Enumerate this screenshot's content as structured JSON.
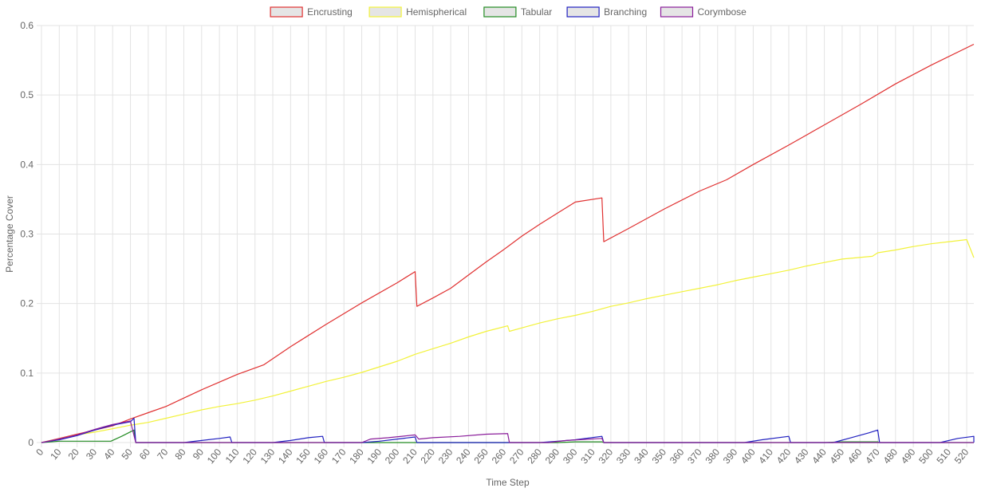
{
  "chart_data": {
    "type": "line",
    "title": "",
    "xlabel": "Time Step",
    "ylabel": "Percentage Cover",
    "xlim": [
      0,
      524
    ],
    "ylim": [
      0,
      0.6
    ],
    "y_ticks": [
      "0",
      "0.1",
      "0.2",
      "0.3",
      "0.4",
      "0.5",
      "0.6"
    ],
    "x_ticks": [
      "0",
      "10",
      "20",
      "30",
      "40",
      "50",
      "60",
      "70",
      "80",
      "90",
      "100",
      "110",
      "120",
      "130",
      "140",
      "150",
      "160",
      "170",
      "180",
      "190",
      "200",
      "210",
      "220",
      "230",
      "240",
      "250",
      "260",
      "270",
      "280",
      "290",
      "300",
      "310",
      "320",
      "330",
      "340",
      "350",
      "360",
      "370",
      "380",
      "390",
      "400",
      "410",
      "420",
      "430",
      "440",
      "450",
      "460",
      "470",
      "480",
      "490",
      "500",
      "510",
      "520"
    ],
    "grid": true,
    "legend_position": "top",
    "series": [
      {
        "name": "Encrusting",
        "color": "#e03030",
        "points": [
          [
            0,
            0
          ],
          [
            10,
            0.006
          ],
          [
            20,
            0.012
          ],
          [
            30,
            0.018
          ],
          [
            40,
            0.024
          ],
          [
            50,
            0.034
          ],
          [
            60,
            0.043
          ],
          [
            70,
            0.052
          ],
          [
            80,
            0.064
          ],
          [
            90,
            0.076
          ],
          [
            100,
            0.087
          ],
          [
            110,
            0.098
          ],
          [
            125,
            0.112
          ],
          [
            140,
            0.138
          ],
          [
            160,
            0.17
          ],
          [
            180,
            0.201
          ],
          [
            200,
            0.23
          ],
          [
            210,
            0.246
          ],
          [
            211,
            0.196
          ],
          [
            220,
            0.208
          ],
          [
            230,
            0.222
          ],
          [
            240,
            0.241
          ],
          [
            250,
            0.26
          ],
          [
            260,
            0.278
          ],
          [
            270,
            0.297
          ],
          [
            280,
            0.314
          ],
          [
            290,
            0.33
          ],
          [
            300,
            0.346
          ],
          [
            315,
            0.352
          ],
          [
            316,
            0.289
          ],
          [
            330,
            0.308
          ],
          [
            350,
            0.336
          ],
          [
            370,
            0.362
          ],
          [
            385,
            0.378
          ],
          [
            400,
            0.4
          ],
          [
            420,
            0.428
          ],
          [
            440,
            0.457
          ],
          [
            460,
            0.486
          ],
          [
            480,
            0.516
          ],
          [
            500,
            0.543
          ],
          [
            524,
            0.573
          ]
        ]
      },
      {
        "name": "Hemispherical",
        "color": "#f2f23a",
        "points": [
          [
            0,
            0
          ],
          [
            10,
            0.005
          ],
          [
            20,
            0.011
          ],
          [
            30,
            0.015
          ],
          [
            40,
            0.02
          ],
          [
            50,
            0.025
          ],
          [
            55,
            0.027
          ],
          [
            60,
            0.029
          ],
          [
            70,
            0.035
          ],
          [
            80,
            0.041
          ],
          [
            90,
            0.047
          ],
          [
            100,
            0.052
          ],
          [
            110,
            0.056
          ],
          [
            120,
            0.061
          ],
          [
            130,
            0.067
          ],
          [
            140,
            0.074
          ],
          [
            150,
            0.081
          ],
          [
            160,
            0.088
          ],
          [
            170,
            0.094
          ],
          [
            180,
            0.101
          ],
          [
            190,
            0.109
          ],
          [
            200,
            0.117
          ],
          [
            210,
            0.127
          ],
          [
            220,
            0.135
          ],
          [
            230,
            0.143
          ],
          [
            240,
            0.152
          ],
          [
            250,
            0.16
          ],
          [
            262,
            0.168
          ],
          [
            263,
            0.16
          ],
          [
            270,
            0.165
          ],
          [
            280,
            0.172
          ],
          [
            290,
            0.178
          ],
          [
            300,
            0.183
          ],
          [
            310,
            0.189
          ],
          [
            320,
            0.196
          ],
          [
            330,
            0.201
          ],
          [
            340,
            0.207
          ],
          [
            350,
            0.212
          ],
          [
            360,
            0.217
          ],
          [
            370,
            0.222
          ],
          [
            380,
            0.227
          ],
          [
            390,
            0.233
          ],
          [
            400,
            0.238
          ],
          [
            410,
            0.243
          ],
          [
            420,
            0.248
          ],
          [
            430,
            0.254
          ],
          [
            440,
            0.259
          ],
          [
            450,
            0.264
          ],
          [
            467,
            0.268
          ],
          [
            470,
            0.273
          ],
          [
            480,
            0.277
          ],
          [
            490,
            0.282
          ],
          [
            500,
            0.286
          ],
          [
            510,
            0.289
          ],
          [
            520,
            0.292
          ],
          [
            524,
            0.266
          ]
        ]
      },
      {
        "name": "Tabular",
        "color": "#228b22",
        "points": [
          [
            0,
            0
          ],
          [
            10,
            0.002
          ],
          [
            20,
            0.002
          ],
          [
            30,
            0.002
          ],
          [
            39,
            0.002
          ],
          [
            45,
            0.009
          ],
          [
            52,
            0.018
          ],
          [
            53,
            0
          ],
          [
            100,
            0
          ],
          [
            200,
            0
          ],
          [
            290,
            0
          ],
          [
            300,
            0.001
          ],
          [
            315,
            0.001
          ],
          [
            316,
            0
          ],
          [
            440,
            0
          ],
          [
            450,
            0.001
          ],
          [
            470,
            0.001
          ],
          [
            471,
            0
          ],
          [
            524,
            0
          ]
        ]
      },
      {
        "name": "Branching",
        "color": "#2020c0",
        "points": [
          [
            0,
            0
          ],
          [
            10,
            0.004
          ],
          [
            20,
            0.01
          ],
          [
            30,
            0.018
          ],
          [
            40,
            0.025
          ],
          [
            50,
            0.03
          ],
          [
            52,
            0.035
          ],
          [
            53,
            0
          ],
          [
            80,
            0
          ],
          [
            90,
            0.003
          ],
          [
            100,
            0.006
          ],
          [
            106,
            0.008
          ],
          [
            107,
            0
          ],
          [
            130,
            0
          ],
          [
            140,
            0.003
          ],
          [
            150,
            0.007
          ],
          [
            158,
            0.009
          ],
          [
            159,
            0
          ],
          [
            180,
            0
          ],
          [
            190,
            0.002
          ],
          [
            200,
            0.005
          ],
          [
            210,
            0.008
          ],
          [
            211,
            0
          ],
          [
            280,
            0
          ],
          [
            290,
            0.002
          ],
          [
            300,
            0.004
          ],
          [
            315,
            0.009
          ],
          [
            316,
            0
          ],
          [
            395,
            0
          ],
          [
            405,
            0.004
          ],
          [
            420,
            0.009
          ],
          [
            421,
            0
          ],
          [
            445,
            0
          ],
          [
            455,
            0.007
          ],
          [
            465,
            0.014
          ],
          [
            470,
            0.018
          ],
          [
            471,
            0
          ],
          [
            505,
            0
          ],
          [
            515,
            0.006
          ],
          [
            524,
            0.009
          ],
          [
            525,
            0
          ]
        ]
      },
      {
        "name": "Corymbose",
        "color": "#8a1c9a",
        "points": [
          [
            0,
            0
          ],
          [
            10,
            0.005
          ],
          [
            20,
            0.011
          ],
          [
            30,
            0.019
          ],
          [
            40,
            0.026
          ],
          [
            50,
            0.031
          ],
          [
            53,
            0
          ],
          [
            180,
            0
          ],
          [
            185,
            0.005
          ],
          [
            195,
            0.007
          ],
          [
            210,
            0.011
          ],
          [
            212,
            0.005
          ],
          [
            220,
            0.007
          ],
          [
            235,
            0.009
          ],
          [
            250,
            0.012
          ],
          [
            262,
            0.013
          ],
          [
            263,
            0
          ],
          [
            285,
            0
          ],
          [
            295,
            0.003
          ],
          [
            315,
            0.006
          ],
          [
            316,
            0
          ],
          [
            524,
            0
          ]
        ]
      }
    ]
  }
}
